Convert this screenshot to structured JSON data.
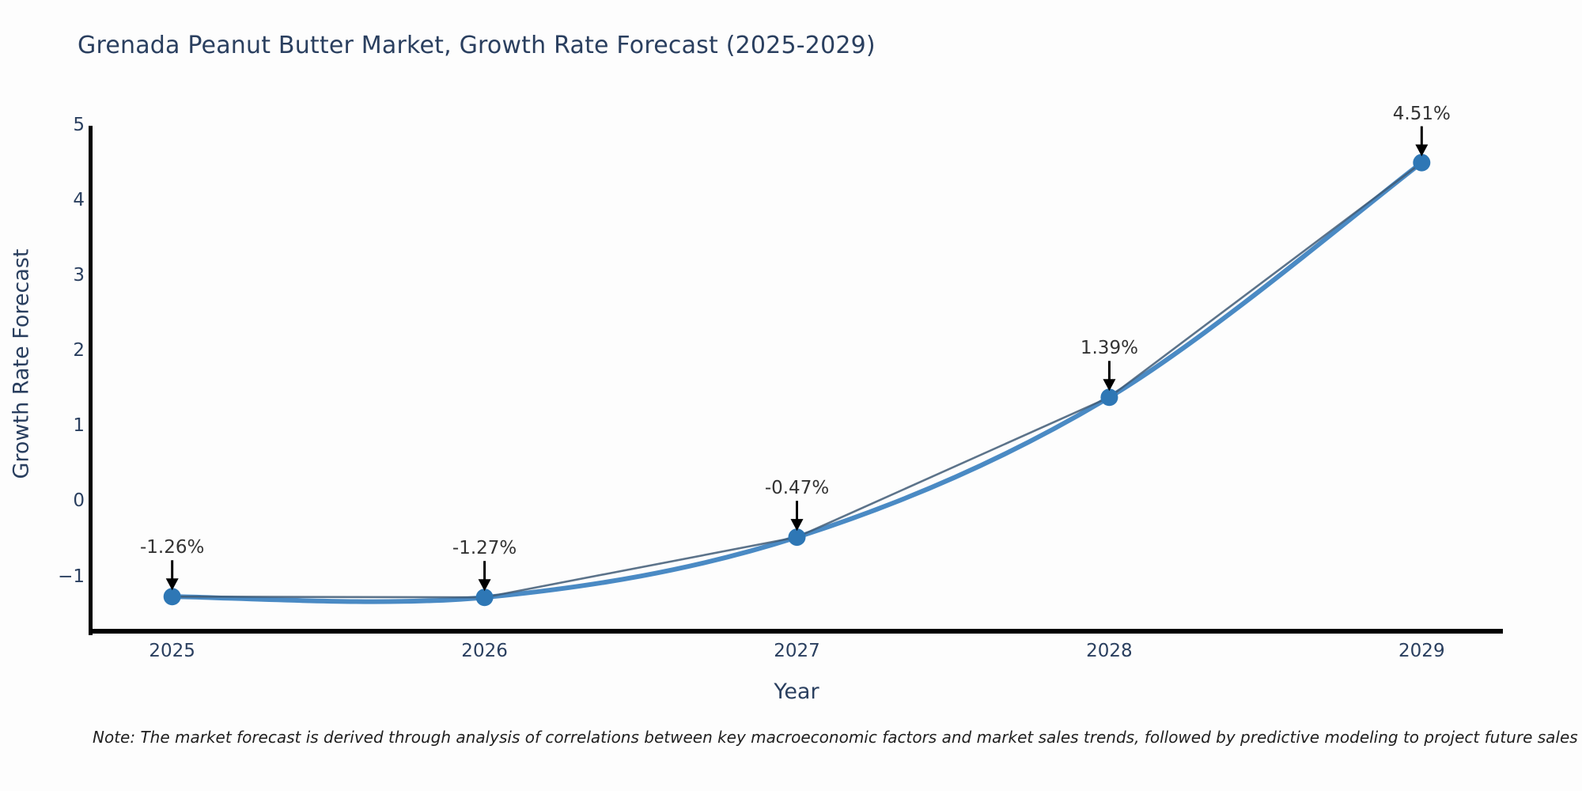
{
  "title": "Grenada Peanut Butter Market, Growth Rate Forecast (2025-2029)",
  "xlabel": "Year",
  "ylabel": "Growth Rate Forecast",
  "note": "Note: The market forecast is derived through analysis of correlations between key macroeconomic factors and market sales trends, followed by predictive modeling to project future sales",
  "colors": {
    "line": "#4a8ac4",
    "line_core": "#3f5a75",
    "marker": "#2e77b5",
    "axis": "#000000",
    "arrow": "#000000",
    "text": "#2a3f5f",
    "annotation_text": "#333333",
    "background": "#fdfdfd"
  },
  "chart_data": {
    "type": "line",
    "title": "Grenada Peanut Butter Market, Growth Rate Forecast (2025-2029)",
    "xlabel": "Year",
    "ylabel": "Growth Rate Forecast",
    "x": [
      2025,
      2026,
      2027,
      2028,
      2029
    ],
    "values": [
      -1.26,
      -1.27,
      -0.47,
      1.39,
      4.51
    ],
    "point_labels": [
      "-1.26%",
      "-1.27%",
      "-0.47%",
      "1.39%",
      "4.51%"
    ],
    "xtick_labels": [
      "2025",
      "2026",
      "2027",
      "2028",
      "2029"
    ],
    "ytick_values": [
      5,
      4,
      3,
      2,
      1,
      0,
      -1
    ],
    "ytick_labels": [
      "5",
      "4",
      "3",
      "2",
      "1",
      "0",
      "−1"
    ],
    "xlim": [
      2024.74,
      2029.26
    ],
    "ylim": [
      -1.72,
      5
    ],
    "line_shape": "spline",
    "markers": true,
    "grid": false,
    "legend": false,
    "annotations_arrow": "down-arrow-to-point"
  }
}
